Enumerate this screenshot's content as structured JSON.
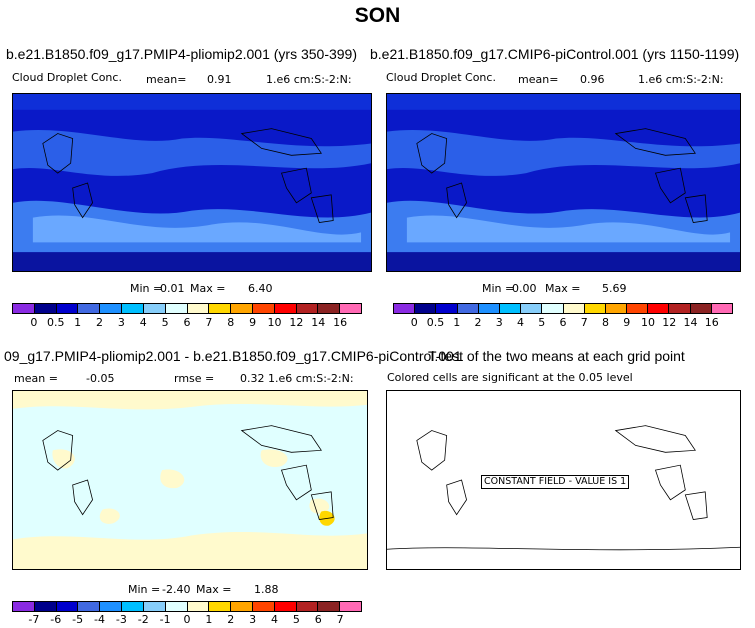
{
  "season": "SON",
  "panel1": {
    "title": "b.e21.B1850.f09_g17.PMIP4-pliomip2.001 (yrs 350-399)",
    "variable": "Cloud Droplet Conc.",
    "mean_label": "mean=",
    "mean_value": "0.91",
    "units": "1.e6 cm:S:-2:N:",
    "min_label": "Min =",
    "min_value": "0.01",
    "max_label": "Max =",
    "max_value": "6.40"
  },
  "panel2": {
    "title": "b.e21.B1850.f09_g17.CMIP6-piControl.001 (yrs 1150-1199)",
    "variable": "Cloud Droplet Conc.",
    "mean_label": "mean=",
    "mean_value": "0.96",
    "units": "1.e6 cm:S:-2:N:",
    "min_label": "Min =",
    "min_value": "0.00",
    "max_label": "Max =",
    "max_value": "5.69"
  },
  "panel3": {
    "title": "09_g17.PMIP4-pliomip2.001 - b.e21.B1850.f09_g17.CMIP6-piControl.001",
    "mean_label": "mean =",
    "mean_value": "-0.05",
    "rmse_label": "rmse =",
    "rmse_value": "0.32",
    "units": "1.e6 cm:S:-2:N:",
    "min_label": "Min =",
    "min_value": "-2.40",
    "max_label": "Max =",
    "max_value": "1.88"
  },
  "panel4": {
    "title": "T-test of the two means at each grid point",
    "subtitle": "Colored cells are significant at the 0.05 level",
    "constant_text": "CONSTANT FIELD - VALUE IS 1"
  },
  "colorbar_abs": {
    "labels": [
      "0",
      "0.5",
      "1",
      "2",
      "3",
      "4",
      "5",
      "6",
      "7",
      "8",
      "9",
      "10",
      "12",
      "14",
      "16"
    ],
    "colors": [
      "#8a2be2",
      "#00008b",
      "#0000cd",
      "#4169e1",
      "#1e90ff",
      "#00bfff",
      "#87cefa",
      "#e0ffff",
      "#fffacd",
      "#ffd700",
      "#ffa500",
      "#ff4500",
      "#ff0000",
      "#b22222",
      "#8b2323",
      "#ff69b4"
    ]
  },
  "colorbar_diff": {
    "labels": [
      "-7",
      "-6",
      "-5",
      "-4",
      "-3",
      "-2",
      "-1",
      "0",
      "1",
      "2",
      "3",
      "4",
      "5",
      "6",
      "7"
    ],
    "colors": [
      "#8a2be2",
      "#00008b",
      "#0000cd",
      "#4169e1",
      "#1e90ff",
      "#00bfff",
      "#87cefa",
      "#e0ffff",
      "#fffacd",
      "#ffd700",
      "#ffa500",
      "#ff4500",
      "#ff0000",
      "#b22222",
      "#8b2323",
      "#ff69b4"
    ]
  }
}
